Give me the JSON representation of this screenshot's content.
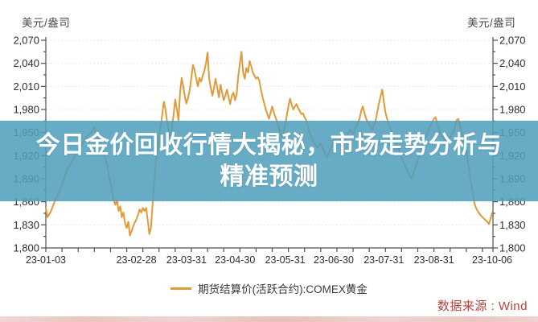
{
  "page": {
    "axis_unit_left": "美元/盎司",
    "axis_unit_right": "美元/盎司",
    "banner": {
      "line1": "今日金价回收行情大揭秘，市场走势分析与",
      "line2": "精准预测"
    },
    "legend": {
      "label": "期货结算价(活跃合约):COMEX黄金"
    },
    "source": "数据来源 : Wind",
    "colors": {
      "line": "#E29A38",
      "banner": "rgba(80,158,188,0.87)",
      "source_text": "#B5413A",
      "axis": "#4f4f4f",
      "tick_text": "#2e2e2e",
      "grid": "#e2e2e2"
    }
  },
  "chart_data": {
    "type": "line",
    "title": "期货结算价(活跃合约):COMEX黄金",
    "ylabel": "美元/盎司",
    "ylim": [
      1800,
      2070
    ],
    "grid": "dotted-horizontal",
    "legend_position": "bottom-center",
    "x_axis_start_date": "23-01-03",
    "x_axis_end_date": "23-10-06",
    "x_total_days": 276,
    "y_ticks": [
      {
        "value": 2070,
        "label": "2,070"
      },
      {
        "value": 2040,
        "label": "2,040"
      },
      {
        "value": 2010,
        "label": "2,010"
      },
      {
        "value": 1980,
        "label": "1,980"
      },
      {
        "value": 1950,
        "label": "1,950"
      },
      {
        "value": 1920,
        "label": "1,920"
      },
      {
        "value": 1890,
        "label": "1,890"
      },
      {
        "value": 1860,
        "label": "1,860"
      },
      {
        "value": 1830,
        "label": "1,830"
      },
      {
        "value": 1800,
        "label": "1,800"
      }
    ],
    "x_ticks": [
      {
        "day": 0,
        "label": "23-01-03"
      },
      {
        "day": 56,
        "label": "23-02-28"
      },
      {
        "day": 87,
        "label": "23-03-31"
      },
      {
        "day": 117,
        "label": "23-04-30"
      },
      {
        "day": 148,
        "label": "23-05-31"
      },
      {
        "day": 178,
        "label": "23-06-30"
      },
      {
        "day": 209,
        "label": "23-07-31"
      },
      {
        "day": 240,
        "label": "23-08-31"
      },
      {
        "day": 276,
        "label": "23-10-06"
      }
    ],
    "series": [
      {
        "name": "期货结算价(活跃合约):COMEX黄金",
        "color": "#E29A38",
        "points": [
          [
            0,
            1852
          ],
          [
            1,
            1840
          ],
          [
            3,
            1847
          ],
          [
            5,
            1858
          ],
          [
            7,
            1868
          ],
          [
            10,
            1882
          ],
          [
            13,
            1900
          ],
          [
            16,
            1912
          ],
          [
            19,
            1924
          ],
          [
            22,
            1934
          ],
          [
            25,
            1944
          ],
          [
            28,
            1950
          ],
          [
            30,
            1956
          ],
          [
            32,
            1946
          ],
          [
            34,
            1936
          ],
          [
            36,
            1922
          ],
          [
            38,
            1908
          ],
          [
            39,
            1894
          ],
          [
            40,
            1886
          ],
          [
            41,
            1872
          ],
          [
            42,
            1862
          ],
          [
            43,
            1856
          ],
          [
            44,
            1862
          ],
          [
            45,
            1848
          ],
          [
            46,
            1854
          ],
          [
            47,
            1840
          ],
          [
            48,
            1846
          ],
          [
            49,
            1832
          ],
          [
            50,
            1826
          ],
          [
            51,
            1834
          ],
          [
            52,
            1816
          ],
          [
            53,
            1822
          ],
          [
            54,
            1828
          ],
          [
            55,
            1833
          ],
          [
            56,
            1837
          ],
          [
            57,
            1843
          ],
          [
            58,
            1850
          ],
          [
            59,
            1846
          ],
          [
            60,
            1852
          ],
          [
            61,
            1848
          ],
          [
            62,
            1852
          ],
          [
            63,
            1836
          ],
          [
            64,
            1818
          ],
          [
            65,
            1826
          ],
          [
            66,
            1856
          ],
          [
            67,
            1884
          ],
          [
            68,
            1911
          ],
          [
            69,
            1928
          ],
          [
            70,
            1944
          ],
          [
            71,
            1958
          ],
          [
            72,
            1974
          ],
          [
            73,
            1990
          ],
          [
            74,
            1980
          ],
          [
            75,
            1964
          ],
          [
            76,
            1952
          ],
          [
            77,
            1942
          ],
          [
            78,
            1956
          ],
          [
            79,
            1974
          ],
          [
            80,
            1993
          ],
          [
            81,
            1980
          ],
          [
            82,
            1966
          ],
          [
            83,
            2002
          ],
          [
            84,
            2021
          ],
          [
            85,
            2010
          ],
          [
            86,
            1996
          ],
          [
            87,
            1988
          ],
          [
            88,
            1996
          ],
          [
            89,
            2006
          ],
          [
            90,
            2022
          ],
          [
            91,
            2038
          ],
          [
            92,
            2031
          ],
          [
            93,
            2020
          ],
          [
            94,
            2010
          ],
          [
            95,
            2021
          ],
          [
            96,
            2016
          ],
          [
            97,
            2024
          ],
          [
            98,
            2030
          ],
          [
            99,
            2040
          ],
          [
            100,
            2054
          ],
          [
            101,
            2020
          ],
          [
            102,
            2008
          ],
          [
            103,
            1998
          ],
          [
            104,
            2008
          ],
          [
            105,
            2020
          ],
          [
            106,
            2008
          ],
          [
            107,
            1996
          ],
          [
            108,
            2012
          ],
          [
            109,
            2002
          ],
          [
            110,
            1992
          ],
          [
            111,
            1998
          ],
          [
            112,
            2006
          ],
          [
            113,
            1996
          ],
          [
            114,
            1987
          ],
          [
            115,
            1998
          ],
          [
            116,
            2002
          ],
          [
            117,
            1992
          ],
          [
            118,
            2000
          ],
          [
            119,
            2024
          ],
          [
            120,
            2040
          ],
          [
            121,
            2055
          ],
          [
            122,
            2028
          ],
          [
            123,
            2020
          ],
          [
            124,
            2034
          ],
          [
            125,
            2028
          ],
          [
            126,
            2043
          ],
          [
            127,
            2036
          ],
          [
            128,
            2028
          ],
          [
            129,
            2024
          ],
          [
            130,
            2020
          ],
          [
            131,
            2022
          ],
          [
            132,
            2018
          ],
          [
            133,
            2006
          ],
          [
            134,
            1996
          ],
          [
            135,
            1988
          ],
          [
            136,
            1980
          ],
          [
            137,
            1974
          ],
          [
            138,
            1968
          ],
          [
            139,
            1976
          ],
          [
            140,
            1984
          ],
          [
            141,
            1976
          ],
          [
            142,
            1970
          ],
          [
            143,
            1964
          ],
          [
            144,
            1958
          ],
          [
            145,
            1948
          ],
          [
            146,
            1944
          ],
          [
            147,
            1950
          ],
          [
            148,
            1960
          ],
          [
            149,
            1972
          ],
          [
            150,
            1984
          ],
          [
            151,
            1994
          ],
          [
            152,
            1986
          ],
          [
            153,
            1980
          ],
          [
            154,
            1984
          ],
          [
            155,
            1987
          ],
          [
            156,
            1982
          ],
          [
            157,
            1978
          ],
          [
            158,
            1974
          ],
          [
            159,
            1975
          ],
          [
            160,
            1970
          ],
          [
            161,
            1966
          ],
          [
            162,
            1958
          ],
          [
            163,
            1950
          ],
          [
            164,
            1944
          ],
          [
            166,
            1936
          ],
          [
            168,
            1930
          ],
          [
            170,
            1936
          ],
          [
            172,
            1926
          ],
          [
            174,
            1918
          ],
          [
            176,
            1928
          ],
          [
            178,
            1938
          ],
          [
            180,
            1946
          ],
          [
            182,
            1940
          ],
          [
            184,
            1934
          ],
          [
            186,
            1944
          ],
          [
            188,
            1954
          ],
          [
            190,
            1948
          ],
          [
            192,
            1958
          ],
          [
            194,
            1968
          ],
          [
            195,
            1978
          ],
          [
            196,
            1984
          ],
          [
            197,
            1976
          ],
          [
            198,
            1968
          ],
          [
            200,
            1960
          ],
          [
            202,
            1954
          ],
          [
            204,
            1966
          ],
          [
            206,
            1988
          ],
          [
            208,
            2006
          ],
          [
            209,
            1990
          ],
          [
            210,
            1976
          ],
          [
            211,
            1968
          ],
          [
            212,
            1960
          ],
          [
            214,
            1950
          ],
          [
            216,
            1940
          ],
          [
            218,
            1930
          ],
          [
            220,
            1918
          ],
          [
            222,
            1908
          ],
          [
            224,
            1898
          ],
          [
            226,
            1890
          ],
          [
            228,
            1900
          ],
          [
            230,
            1914
          ],
          [
            232,
            1926
          ],
          [
            234,
            1938
          ],
          [
            236,
            1950
          ],
          [
            238,
            1960
          ],
          [
            240,
            1968
          ],
          [
            241,
            1970
          ],
          [
            242,
            1962
          ],
          [
            243,
            1954
          ],
          [
            244,
            1948
          ],
          [
            246,
            1942
          ],
          [
            248,
            1938
          ],
          [
            250,
            1944
          ],
          [
            252,
            1950
          ],
          [
            253,
            1958
          ],
          [
            254,
            1966
          ],
          [
            255,
            1968
          ],
          [
            256,
            1960
          ],
          [
            257,
            1952
          ],
          [
            258,
            1944
          ],
          [
            259,
            1936
          ],
          [
            260,
            1928
          ],
          [
            261,
            1912
          ],
          [
            262,
            1898
          ],
          [
            263,
            1884
          ],
          [
            264,
            1872
          ],
          [
            265,
            1858
          ],
          [
            266,
            1852
          ],
          [
            267,
            1848
          ],
          [
            268,
            1845
          ],
          [
            269,
            1842
          ],
          [
            270,
            1840
          ],
          [
            271,
            1838
          ],
          [
            272,
            1836
          ],
          [
            273,
            1834
          ],
          [
            274,
            1831
          ],
          [
            275,
            1838
          ],
          [
            276,
            1846
          ]
        ]
      }
    ]
  }
}
